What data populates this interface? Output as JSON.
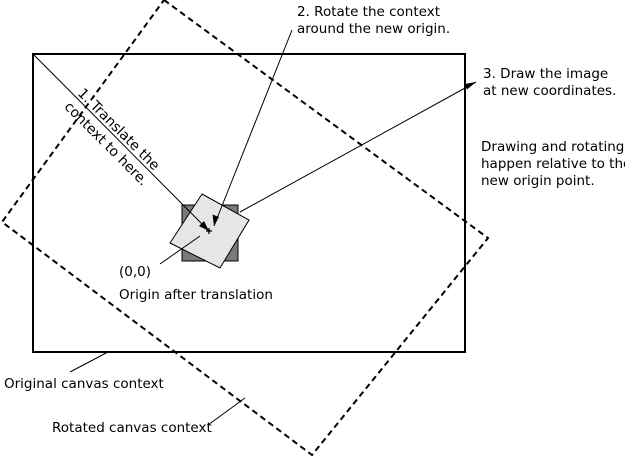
{
  "labels": {
    "step1_line1": "1. Translate the",
    "step1_line2": "context to here.",
    "step2_line1": "2. Rotate the context",
    "step2_line2": "around the new origin.",
    "step3_line1": "3. Draw the image",
    "step3_line2": "at new coordinates.",
    "note_line1": "Drawing and rotating",
    "note_line2": "happen relative to the",
    "note_line3": "new origin point.",
    "origin_coords": "(0,0)",
    "origin_caption": "Origin after translation",
    "original_canvas": "Original canvas context",
    "rotated_canvas": "Rotated canvas context"
  },
  "colors": {
    "stroke": "#000000",
    "unrotated_image_fill": "#7a7a7a",
    "rotated_image_fill": "#e6e6e6",
    "background": "#ffffff"
  },
  "rotation_degrees": 30
}
